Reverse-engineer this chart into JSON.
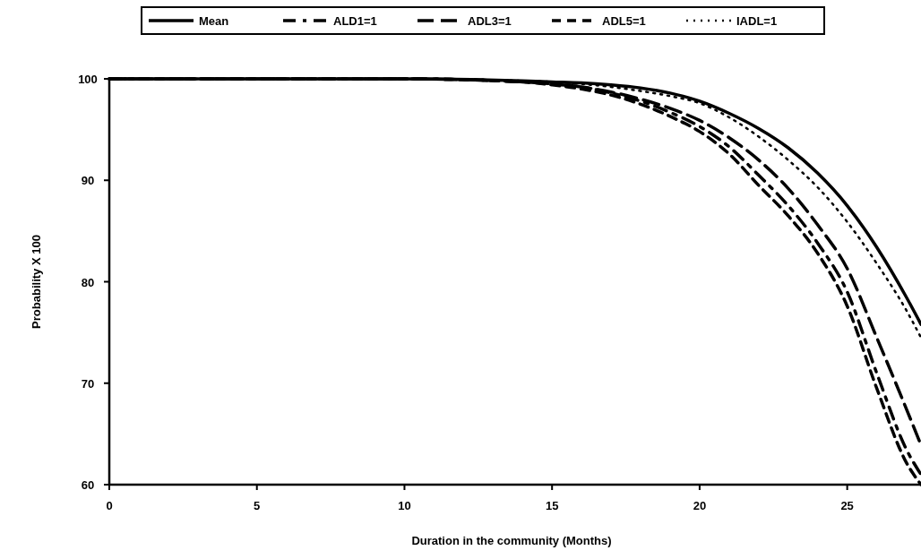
{
  "chart_data": {
    "type": "line",
    "xlabel": "Duration in the community (Months)",
    "ylabel": "Probability X 100",
    "x": [
      0,
      5,
      10,
      14,
      15,
      16,
      17,
      18,
      19,
      20,
      21,
      22,
      23,
      24,
      25,
      26,
      27,
      27.5
    ],
    "xlim": [
      0,
      27.5
    ],
    "xticks": [
      0,
      5,
      10,
      15,
      20,
      25
    ],
    "ylim": [
      60,
      100
    ],
    "yticks": [
      60,
      70,
      80,
      90,
      100
    ],
    "grid": false,
    "legend": "top",
    "marker": "none",
    "series": [
      {
        "name": "Mean",
        "color": "#000000",
        "line_style": "solid",
        "values": [
          100,
          100,
          100,
          99.8,
          99.7,
          99.6,
          99.4,
          99.1,
          98.6,
          97.8,
          96.6,
          95.1,
          93.2,
          90.7,
          87.5,
          83.4,
          78.5,
          75.8
        ]
      },
      {
        "name": "ALD1=1",
        "color": "#000000",
        "line_style": "dashed",
        "values": [
          100,
          100,
          100,
          99.7,
          99.5,
          99.2,
          98.6,
          97.8,
          96.7,
          95.3,
          93.3,
          90.5,
          87.5,
          83.8,
          79,
          71,
          63.5,
          61
        ]
      },
      {
        "name": "ADL3=1",
        "color": "#000000",
        "line_style": "dashed",
        "values": [
          100,
          100,
          100,
          99.7,
          99.5,
          99.2,
          98.7,
          98,
          97.1,
          95.9,
          94.2,
          92,
          89.2,
          85.6,
          81.3,
          74.5,
          67.5,
          63.9
        ]
      },
      {
        "name": "ADL5=1",
        "color": "#000000",
        "line_style": "dashed",
        "values": [
          100,
          100,
          100,
          99.7,
          99.4,
          99,
          98.4,
          97.5,
          96.3,
          94.8,
          92.6,
          89.5,
          86.5,
          82.8,
          77.6,
          69.5,
          62.2,
          60
        ]
      },
      {
        "name": "IADL=1",
        "color": "#000000",
        "line_style": "dotted",
        "values": [
          100,
          100,
          100,
          99.8,
          99.7,
          99.5,
          99.2,
          98.8,
          98.3,
          97.6,
          96.2,
          94.3,
          92,
          89.3,
          85.9,
          81.8,
          77.2,
          74.5
        ]
      }
    ]
  }
}
